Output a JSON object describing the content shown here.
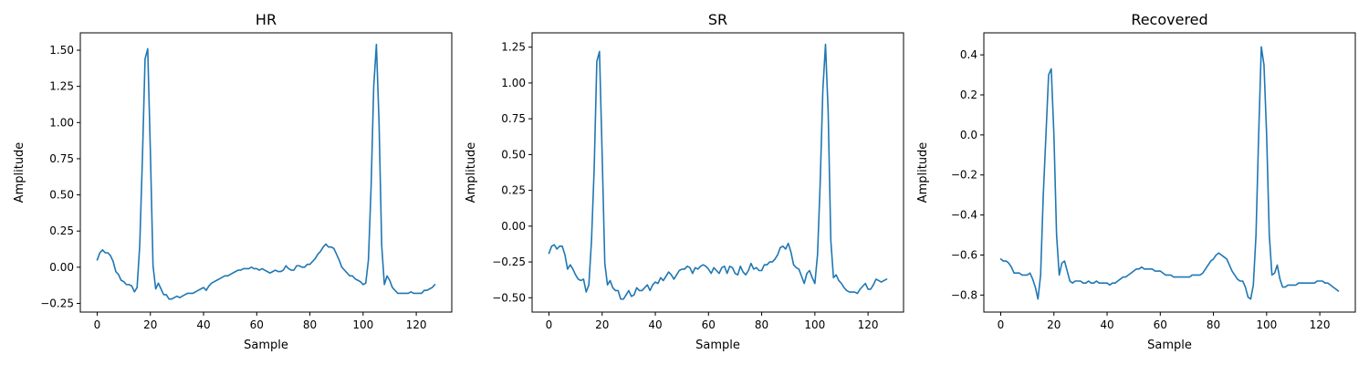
{
  "chart_data": [
    {
      "type": "line",
      "title": "HR",
      "xlabel": "Sample",
      "ylabel": "Amplitude",
      "xlim": [
        -6.35,
        133.35
      ],
      "ylim": [
        -0.31,
        1.62
      ],
      "xticks": [
        0,
        20,
        40,
        60,
        80,
        100,
        120
      ],
      "yticks": [
        -0.25,
        0.0,
        0.25,
        0.5,
        0.75,
        1.0,
        1.25,
        1.5
      ],
      "ytick_labels": [
        "−0.25",
        "0.00",
        "0.25",
        "0.50",
        "0.75",
        "1.00",
        "1.25",
        "1.50"
      ],
      "grid": false,
      "color": "#1f77b4",
      "series": [
        {
          "x": [
            0,
            1,
            2,
            3,
            4,
            5,
            6,
            7,
            8,
            9,
            10,
            11,
            12,
            13,
            14,
            15,
            16,
            17,
            18,
            19,
            20,
            21,
            22,
            23,
            24,
            25,
            26,
            27,
            28,
            29,
            30,
            31,
            32,
            33,
            34,
            35,
            36,
            37,
            38,
            39,
            40,
            41,
            42,
            43,
            44,
            45,
            46,
            47,
            48,
            49,
            50,
            51,
            52,
            53,
            54,
            55,
            56,
            57,
            58,
            59,
            60,
            61,
            62,
            63,
            64,
            65,
            66,
            67,
            68,
            69,
            70,
            71,
            72,
            73,
            74,
            75,
            76,
            77,
            78,
            79,
            80,
            81,
            82,
            83,
            84,
            85,
            86,
            87,
            88,
            89,
            90,
            91,
            92,
            93,
            94,
            95,
            96,
            97,
            98,
            99,
            100,
            101,
            102,
            103,
            104,
            105,
            106,
            107,
            108,
            109,
            110,
            111,
            112,
            113,
            114,
            115,
            116,
            117,
            118,
            119,
            120,
            121,
            122,
            123,
            124,
            125,
            126,
            127
          ],
          "values": [
            0.05,
            0.1,
            0.12,
            0.1,
            0.1,
            0.08,
            0.04,
            -0.03,
            -0.05,
            -0.09,
            -0.1,
            -0.12,
            -0.12,
            -0.13,
            -0.17,
            -0.14,
            0.15,
            0.75,
            1.44,
            1.51,
            0.8,
            0.01,
            -0.15,
            -0.11,
            -0.15,
            -0.19,
            -0.19,
            -0.22,
            -0.22,
            -0.21,
            -0.2,
            -0.21,
            -0.2,
            -0.19,
            -0.18,
            -0.18,
            -0.18,
            -0.17,
            -0.16,
            -0.15,
            -0.14,
            -0.16,
            -0.13,
            -0.11,
            -0.1,
            -0.09,
            -0.08,
            -0.07,
            -0.06,
            -0.06,
            -0.05,
            -0.04,
            -0.03,
            -0.02,
            -0.02,
            -0.01,
            -0.01,
            -0.01,
            0.0,
            -0.01,
            -0.01,
            -0.02,
            -0.01,
            -0.02,
            -0.03,
            -0.04,
            -0.03,
            -0.02,
            -0.03,
            -0.03,
            -0.02,
            0.01,
            -0.01,
            -0.02,
            -0.02,
            0.01,
            0.01,
            0.0,
            0.0,
            0.02,
            0.02,
            0.04,
            0.06,
            0.09,
            0.11,
            0.14,
            0.16,
            0.14,
            0.14,
            0.13,
            0.09,
            0.05,
            0.0,
            -0.02,
            -0.04,
            -0.06,
            -0.06,
            -0.08,
            -0.09,
            -0.1,
            -0.12,
            -0.11,
            0.05,
            0.55,
            1.25,
            1.54,
            1.0,
            0.15,
            -0.12,
            -0.06,
            -0.09,
            -0.14,
            -0.16,
            -0.18,
            -0.18,
            -0.18,
            -0.18,
            -0.18,
            -0.17,
            -0.18,
            -0.18,
            -0.18,
            -0.18,
            -0.16,
            -0.16,
            -0.15,
            -0.14,
            -0.12
          ]
        }
      ]
    },
    {
      "type": "line",
      "title": "SR",
      "xlabel": "Sample",
      "ylabel": "Amplitude",
      "xlim": [
        -6.35,
        133.35
      ],
      "ylim": [
        -0.6,
        1.35
      ],
      "xticks": [
        0,
        20,
        40,
        60,
        80,
        100,
        120
      ],
      "yticks": [
        -0.5,
        -0.25,
        0.0,
        0.25,
        0.5,
        0.75,
        1.0,
        1.25
      ],
      "ytick_labels": [
        "−0.50",
        "−0.25",
        "0.00",
        "0.25",
        "0.50",
        "0.75",
        "1.00",
        "1.25"
      ],
      "grid": false,
      "color": "#1f77b4",
      "series": [
        {
          "x": [
            0,
            1,
            2,
            3,
            4,
            5,
            6,
            7,
            8,
            9,
            10,
            11,
            12,
            13,
            14,
            15,
            16,
            17,
            18,
            19,
            20,
            21,
            22,
            23,
            24,
            25,
            26,
            27,
            28,
            29,
            30,
            31,
            32,
            33,
            34,
            35,
            36,
            37,
            38,
            39,
            40,
            41,
            42,
            43,
            44,
            45,
            46,
            47,
            48,
            49,
            50,
            51,
            52,
            53,
            54,
            55,
            56,
            57,
            58,
            59,
            60,
            61,
            62,
            63,
            64,
            65,
            66,
            67,
            68,
            69,
            70,
            71,
            72,
            73,
            74,
            75,
            76,
            77,
            78,
            79,
            80,
            81,
            82,
            83,
            84,
            85,
            86,
            87,
            88,
            89,
            90,
            91,
            92,
            93,
            94,
            95,
            96,
            97,
            98,
            99,
            100,
            101,
            102,
            103,
            104,
            105,
            106,
            107,
            108,
            109,
            110,
            111,
            112,
            113,
            114,
            115,
            116,
            117,
            118,
            119,
            120,
            121,
            122,
            123,
            124,
            125,
            126,
            127
          ],
          "values": [
            -0.19,
            -0.14,
            -0.13,
            -0.16,
            -0.14,
            -0.14,
            -0.2,
            -0.3,
            -0.27,
            -0.3,
            -0.34,
            -0.37,
            -0.38,
            -0.37,
            -0.46,
            -0.41,
            -0.1,
            0.4,
            1.15,
            1.22,
            0.5,
            -0.26,
            -0.41,
            -0.38,
            -0.43,
            -0.45,
            -0.45,
            -0.51,
            -0.51,
            -0.48,
            -0.45,
            -0.49,
            -0.48,
            -0.43,
            -0.45,
            -0.45,
            -0.43,
            -0.41,
            -0.45,
            -0.41,
            -0.39,
            -0.4,
            -0.36,
            -0.38,
            -0.35,
            -0.32,
            -0.34,
            -0.37,
            -0.34,
            -0.31,
            -0.3,
            -0.3,
            -0.28,
            -0.29,
            -0.33,
            -0.29,
            -0.3,
            -0.28,
            -0.27,
            -0.28,
            -0.3,
            -0.33,
            -0.29,
            -0.31,
            -0.33,
            -0.29,
            -0.28,
            -0.33,
            -0.28,
            -0.29,
            -0.33,
            -0.34,
            -0.28,
            -0.32,
            -0.34,
            -0.31,
            -0.26,
            -0.3,
            -0.29,
            -0.31,
            -0.31,
            -0.27,
            -0.27,
            -0.25,
            -0.25,
            -0.23,
            -0.2,
            -0.15,
            -0.14,
            -0.16,
            -0.12,
            -0.18,
            -0.27,
            -0.29,
            -0.3,
            -0.35,
            -0.4,
            -0.33,
            -0.31,
            -0.36,
            -0.4,
            -0.2,
            0.3,
            0.95,
            1.27,
            0.8,
            -0.1,
            -0.36,
            -0.34,
            -0.38,
            -0.4,
            -0.43,
            -0.45,
            -0.46,
            -0.46,
            -0.46,
            -0.47,
            -0.44,
            -0.42,
            -0.4,
            -0.44,
            -0.44,
            -0.41,
            -0.37,
            -0.38,
            -0.39,
            -0.38,
            -0.37
          ]
        }
      ]
    },
    {
      "type": "line",
      "title": "Recovered",
      "xlabel": "Sample",
      "ylabel": "Amplitude",
      "xlim": [
        -6.35,
        133.35
      ],
      "ylim": [
        -0.885,
        0.51
      ],
      "xticks": [
        0,
        20,
        40,
        60,
        80,
        100,
        120
      ],
      "yticks": [
        -0.8,
        -0.6,
        -0.4,
        -0.2,
        0.0,
        0.2,
        0.4
      ],
      "ytick_labels": [
        "−0.8",
        "−0.6",
        "−0.4",
        "−0.2",
        "0.0",
        "0.2",
        "0.4"
      ],
      "grid": false,
      "color": "#1f77b4",
      "series": [
        {
          "x": [
            0,
            1,
            2,
            3,
            4,
            5,
            6,
            7,
            8,
            9,
            10,
            11,
            12,
            13,
            14,
            15,
            16,
            17,
            18,
            19,
            20,
            21,
            22,
            23,
            24,
            25,
            26,
            27,
            28,
            29,
            30,
            31,
            32,
            33,
            34,
            35,
            36,
            37,
            38,
            39,
            40,
            41,
            42,
            43,
            44,
            45,
            46,
            47,
            48,
            49,
            50,
            51,
            52,
            53,
            54,
            55,
            56,
            57,
            58,
            59,
            60,
            61,
            62,
            63,
            64,
            65,
            66,
            67,
            68,
            69,
            70,
            71,
            72,
            73,
            74,
            75,
            76,
            77,
            78,
            79,
            80,
            81,
            82,
            83,
            84,
            85,
            86,
            87,
            88,
            89,
            90,
            91,
            92,
            93,
            94,
            95,
            96,
            97,
            98,
            99,
            100,
            101,
            102,
            103,
            104,
            105,
            106,
            107,
            108,
            109,
            110,
            111,
            112,
            113,
            114,
            115,
            116,
            117,
            118,
            119,
            120,
            121,
            122,
            123,
            124,
            125,
            126,
            127
          ],
          "values": [
            -0.62,
            -0.63,
            -0.63,
            -0.64,
            -0.66,
            -0.69,
            -0.69,
            -0.69,
            -0.7,
            -0.7,
            -0.7,
            -0.69,
            -0.72,
            -0.76,
            -0.82,
            -0.7,
            -0.3,
            0.0,
            0.3,
            0.33,
            0.0,
            -0.5,
            -0.7,
            -0.64,
            -0.63,
            -0.68,
            -0.73,
            -0.74,
            -0.73,
            -0.73,
            -0.73,
            -0.74,
            -0.74,
            -0.73,
            -0.74,
            -0.74,
            -0.73,
            -0.74,
            -0.74,
            -0.74,
            -0.74,
            -0.75,
            -0.74,
            -0.74,
            -0.73,
            -0.72,
            -0.71,
            -0.71,
            -0.7,
            -0.69,
            -0.68,
            -0.67,
            -0.67,
            -0.66,
            -0.67,
            -0.67,
            -0.67,
            -0.67,
            -0.68,
            -0.68,
            -0.68,
            -0.69,
            -0.7,
            -0.7,
            -0.7,
            -0.71,
            -0.71,
            -0.71,
            -0.71,
            -0.71,
            -0.71,
            -0.71,
            -0.7,
            -0.7,
            -0.7,
            -0.7,
            -0.69,
            -0.67,
            -0.65,
            -0.63,
            -0.62,
            -0.6,
            -0.59,
            -0.6,
            -0.61,
            -0.62,
            -0.65,
            -0.68,
            -0.7,
            -0.72,
            -0.73,
            -0.73,
            -0.76,
            -0.81,
            -0.82,
            -0.75,
            -0.5,
            0.0,
            0.44,
            0.35,
            0.0,
            -0.5,
            -0.7,
            -0.69,
            -0.65,
            -0.72,
            -0.76,
            -0.76,
            -0.75,
            -0.75,
            -0.75,
            -0.75,
            -0.74,
            -0.74,
            -0.74,
            -0.74,
            -0.74,
            -0.74,
            -0.74,
            -0.73,
            -0.73,
            -0.73,
            -0.74,
            -0.74,
            -0.75,
            -0.76,
            -0.77,
            -0.78
          ]
        }
      ]
    }
  ]
}
